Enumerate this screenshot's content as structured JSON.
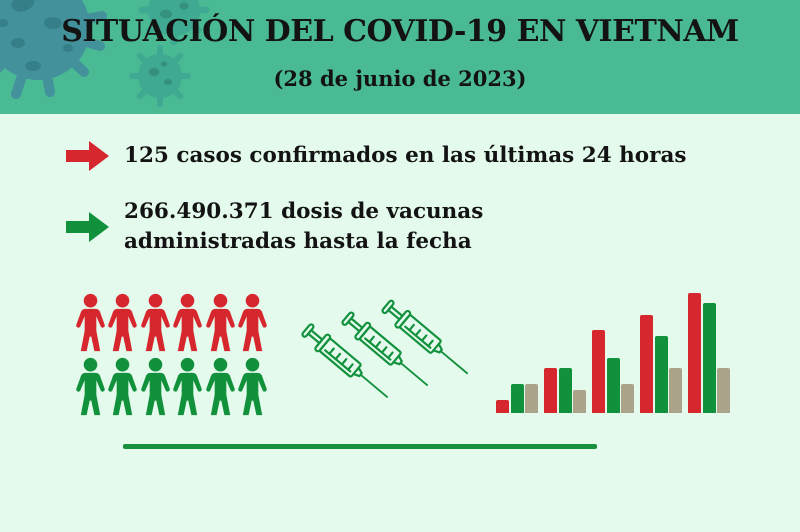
{
  "header": {
    "title": "SITUACIÓN DEL COVID-19 EN VIETNAM",
    "subtitle": "(28 de junio de 2023)"
  },
  "bullets": [
    {
      "icon": "arrow-right-icon",
      "arrow_color": "#d7272e",
      "text": "125 casos confirmados en las últimas 24 horas"
    },
    {
      "icon": "arrow-right-icon",
      "arrow_color": "#12913d",
      "text": "266.490.371 dosis de vacunas administradas hasta la fecha"
    }
  ],
  "infographic": {
    "people_rows": [
      {
        "name": "people-row-red",
        "color": "#d7272e",
        "count": 6
      },
      {
        "name": "people-row-green",
        "color": "#12913d",
        "count": 6
      }
    ],
    "syringe_count": 3,
    "syringe_color": "#12913d"
  },
  "chart_data": {
    "type": "bar",
    "description": "Decorative grouped bar chart, no axes, gridlines, tick labels or data labels shown",
    "groups": 5,
    "categories": [
      "",
      "",
      "",
      "",
      ""
    ],
    "series": [
      {
        "name": "red",
        "color": "#d7272e",
        "values": [
          13,
          45,
          83,
          98,
          120
        ]
      },
      {
        "name": "green",
        "color": "#12913d",
        "values": [
          29,
          45,
          55,
          77,
          110
        ]
      },
      {
        "name": "tan",
        "color": "#aba48a",
        "values": [
          29,
          23,
          29,
          45,
          45
        ]
      }
    ],
    "unit": "relative height (px), values estimated from pixels",
    "legend_shown": false,
    "axes_shown": false
  },
  "colors": {
    "header_bg": "#49ba93",
    "body_bg": "#e4faec",
    "red": "#d7272e",
    "green": "#12913d",
    "tan": "#aba48a",
    "text": "#131313",
    "divider": "#17913d",
    "virus_body": "#43919a",
    "virus_spot": "#357f89",
    "virus_faint": "#3fa992",
    "virus_faint_spot": "#35917b"
  }
}
